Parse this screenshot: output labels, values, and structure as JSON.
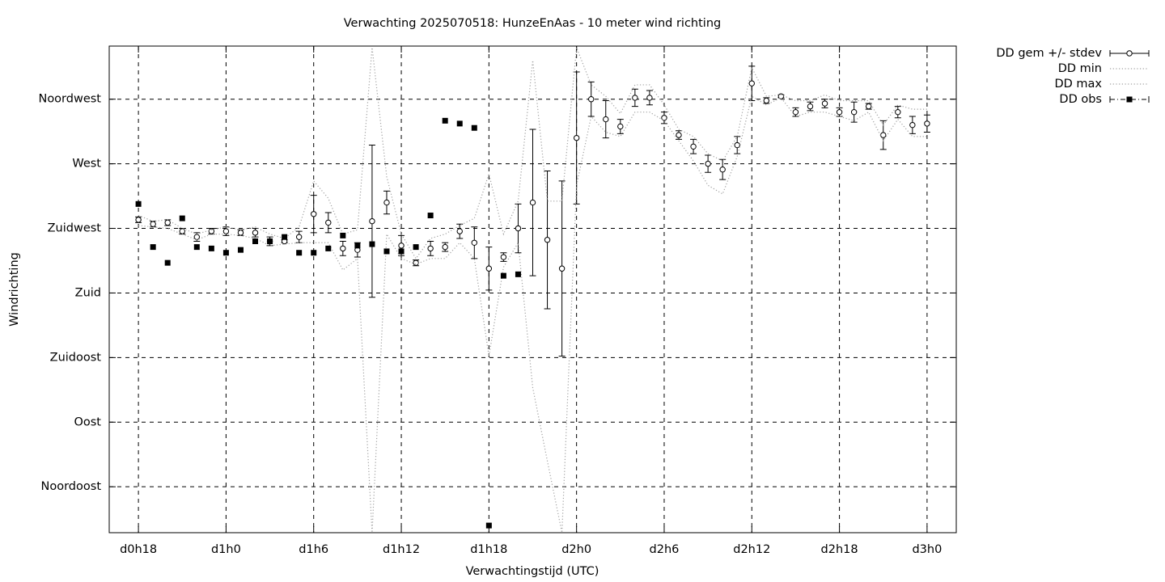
{
  "chart_data": {
    "type": "errorbar",
    "title": "Verwachting 2025070518: HunzeEnAas - 10 meter wind richting",
    "xlabel": "Verwachtingstijd (UTC)",
    "ylabel": "Windrichting",
    "grid": true,
    "legend": "outside-top-right",
    "xlim": [
      16,
      74
    ],
    "ylim": [
      13,
      352
    ],
    "xticks": [
      {
        "value": 18,
        "label": "d0h18"
      },
      {
        "value": 24,
        "label": "d1h0"
      },
      {
        "value": 30,
        "label": "d1h6"
      },
      {
        "value": 36,
        "label": "d1h12"
      },
      {
        "value": 42,
        "label": "d1h18"
      },
      {
        "value": 48,
        "label": "d2h0"
      },
      {
        "value": 54,
        "label": "d2h6"
      },
      {
        "value": 60,
        "label": "d2h12"
      },
      {
        "value": 66,
        "label": "d2h18"
      },
      {
        "value": 72,
        "label": "d3h0"
      }
    ],
    "yticks": [
      {
        "value": 45,
        "label": "Noordoost"
      },
      {
        "value": 90,
        "label": "Oost"
      },
      {
        "value": 135,
        "label": "Zuidoost"
      },
      {
        "value": 180,
        "label": "Zuid"
      },
      {
        "value": 225,
        "label": "Zuidwest"
      },
      {
        "value": 270,
        "label": "West"
      },
      {
        "value": 315,
        "label": "Noordwest"
      }
    ],
    "x": [
      18,
      19,
      20,
      21,
      22,
      23,
      24,
      25,
      26,
      27,
      28,
      29,
      30,
      31,
      32,
      33,
      34,
      35,
      36,
      37,
      38,
      39,
      40,
      41,
      42,
      43,
      44,
      45,
      46,
      47,
      48,
      49,
      50,
      51,
      52,
      53,
      54,
      55,
      56,
      57,
      58,
      59,
      60,
      61,
      62,
      63,
      64,
      65,
      66,
      67,
      68,
      69,
      70,
      71,
      72
    ],
    "series": [
      {
        "name": "DD gem +/- stdev",
        "style": "errorbars",
        "color": "#000000",
        "values": [
          231,
          228,
          229,
          223,
          219,
          223,
          223,
          222,
          222,
          216,
          216,
          219,
          235,
          229,
          211,
          210,
          230,
          243,
          213,
          201,
          211,
          212,
          223,
          215,
          197,
          205,
          225,
          243,
          217,
          197,
          288,
          315,
          301,
          296,
          316,
          316,
          302,
          290,
          282,
          270,
          266,
          283,
          326,
          314,
          317,
          306,
          310,
          312,
          306,
          306,
          310,
          290,
          306,
          297,
          298
        ],
        "errors": [
          2,
          2,
          2,
          2,
          3,
          2,
          3,
          2,
          3,
          3,
          1,
          4,
          13,
          7,
          5,
          5,
          53,
          8,
          7,
          2,
          5,
          3,
          5,
          11,
          15,
          3,
          17,
          51,
          48,
          61,
          46,
          12,
          13,
          5,
          6,
          5,
          4,
          3,
          5,
          6,
          7,
          6,
          12,
          2,
          1,
          3,
          3,
          3,
          3,
          7,
          2,
          10,
          4,
          6,
          6
        ]
      },
      {
        "name": "DD min",
        "style": "dotted",
        "color": "#a0a0a0",
        "values": [
          227,
          226,
          225,
          221,
          217,
          221,
          221,
          220,
          218,
          213,
          214,
          215,
          215,
          215,
          196,
          204,
          13,
          221,
          204,
          200,
          204,
          204,
          215,
          204,
          136,
          198,
          215,
          114,
          63,
          13,
          255,
          303,
          292,
          289,
          306,
          306,
          300,
          286,
          272,
          255,
          249,
          275,
          317,
          311,
          316,
          303,
          306,
          306,
          303,
          300,
          306,
          286,
          301,
          289,
          289
        ]
      },
      {
        "name": "DD max",
        "style": "dotted",
        "color": "#a0a0a0",
        "values": [
          234,
          230,
          231,
          225,
          221,
          224,
          226,
          224,
          226,
          221,
          218,
          226,
          258,
          246,
          221,
          224,
          351,
          261,
          221,
          204,
          218,
          221,
          227,
          232,
          263,
          221,
          244,
          342,
          244,
          244,
          351,
          325,
          317,
          305,
          325,
          325,
          311,
          294,
          289,
          277,
          272,
          289,
          337,
          317,
          318,
          314,
          314,
          318,
          314,
          314,
          314,
          297,
          311,
          308,
          308
        ]
      },
      {
        "name": "DD obs",
        "style": "points",
        "color": "#000000",
        "values": [
          242,
          212,
          201,
          232,
          212,
          211,
          208,
          210,
          216,
          216,
          219,
          208,
          208,
          211,
          220,
          213,
          214,
          209,
          209,
          212,
          234,
          300,
          298,
          295,
          18,
          192,
          193,
          null,
          null,
          null,
          null,
          null,
          null,
          null,
          null,
          null,
          null,
          null,
          null,
          null,
          null,
          null,
          null,
          null,
          null,
          null,
          null,
          null,
          null,
          null,
          null,
          null,
          null,
          null,
          null
        ]
      }
    ]
  }
}
